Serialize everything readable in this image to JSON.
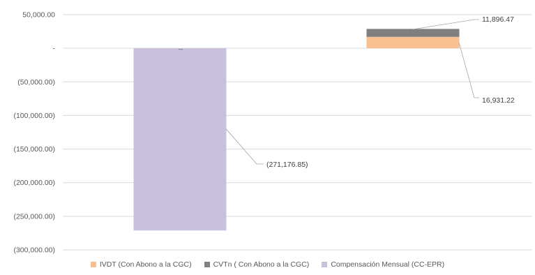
{
  "chart_data": {
    "type": "bar",
    "stacked": true,
    "categories": [
      "",
      ""
    ],
    "ylim": [
      -300000,
      50000
    ],
    "yticks": [
      50000,
      0,
      -50000,
      -100000,
      -150000,
      -200000,
      -250000,
      -300000
    ],
    "ytick_labels": [
      "50,000.00",
      "-",
      "(50,000.00)",
      "(100,000.00)",
      "(150,000.00)",
      "(200,000.00)",
      "(250,000.00)",
      "(300,000.00)"
    ],
    "grid": true,
    "legend_position": "bottom",
    "series": [
      {
        "name": "IVDT  (Con Abono a la CGC)",
        "color": "#F8C08F",
        "values": [
          0,
          16931.22
        ],
        "labels": [
          "",
          "16,931.22"
        ]
      },
      {
        "name": "CVTn  ( Con Abono a la CGC)",
        "color": "#7F7F7F",
        "values": [
          0,
          11896.47
        ],
        "labels": [
          "",
          "11,896.47"
        ]
      },
      {
        "name": "Compensación  Mensual (CC-EPR)",
        "color": "#CBC0DC",
        "values": [
          -271176.85,
          0
        ],
        "labels": [
          "(271,176.85)",
          ""
        ]
      }
    ]
  }
}
